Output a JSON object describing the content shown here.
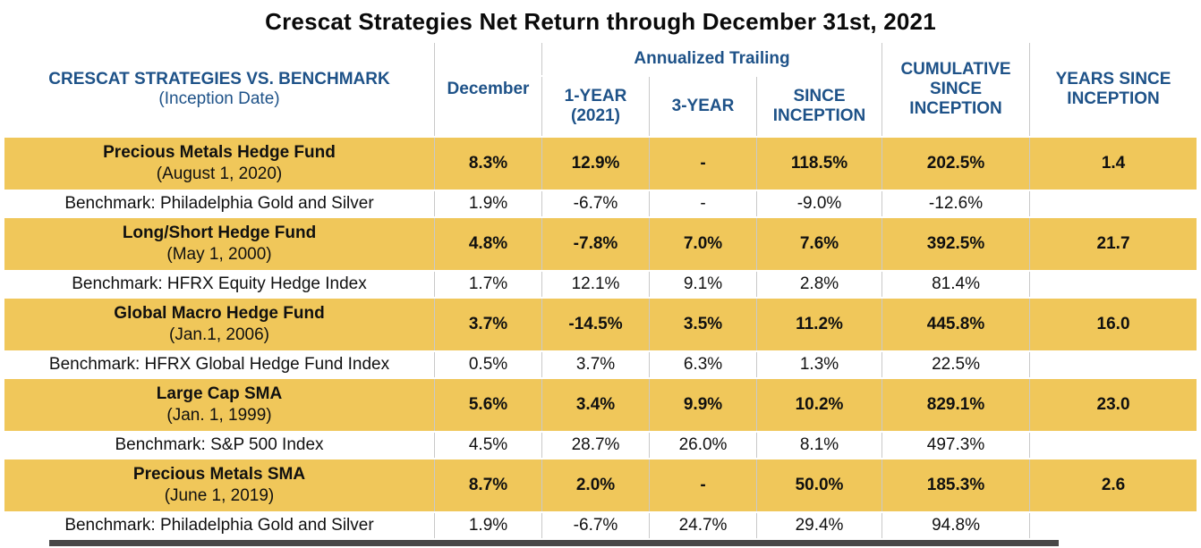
{
  "title": "Crescat Strategies Net Return through December 31st, 2021",
  "colors": {
    "gold": "#F0C75A",
    "header-blue": "#1E5288",
    "border-gray": "#c9c9c9",
    "bar-gray": "#484848",
    "text-black": "#101010"
  },
  "table": {
    "header": {
      "strategy_line1": "CRESCAT STRATEGIES VS. BENCHMARK",
      "strategy_line2": "(Inception Date)",
      "december": "December",
      "annualized_group": "Annualized Trailing",
      "one_year_lines": [
        "1-YEAR",
        "(2021)"
      ],
      "three_year": "3-YEAR",
      "since_lines": [
        "SINCE",
        "INCEPTION"
      ],
      "cumulative_lines": [
        "CUMULATIVE",
        "SINCE",
        "INCEPTION"
      ],
      "years_lines": [
        "YEARS SINCE",
        "INCEPTION"
      ]
    },
    "rows": [
      {
        "type": "fund",
        "name": "Precious Metals Hedge Fund",
        "inception": "(August 1, 2020)",
        "december": "8.3%",
        "one_year": "12.9%",
        "three_year": "-",
        "since_inception": "118.5%",
        "cumulative": "202.5%",
        "years": "1.4"
      },
      {
        "type": "bench",
        "name": "Benchmark: Philadelphia Gold and Silver",
        "december": "1.9%",
        "one_year": "-6.7%",
        "three_year": "-",
        "since_inception": "-9.0%",
        "cumulative": "-12.6%",
        "years": ""
      },
      {
        "type": "fund",
        "name": "Long/Short Hedge Fund",
        "inception": "(May 1, 2000)",
        "december": "4.8%",
        "one_year": "-7.8%",
        "three_year": "7.0%",
        "since_inception": "7.6%",
        "cumulative": "392.5%",
        "years": "21.7"
      },
      {
        "type": "bench",
        "name": "Benchmark: HFRX Equity Hedge Index",
        "december": "1.7%",
        "one_year": "12.1%",
        "three_year": "9.1%",
        "since_inception": "2.8%",
        "cumulative": "81.4%",
        "years": ""
      },
      {
        "type": "fund",
        "name": "Global Macro Hedge Fund",
        "inception": "(Jan.1, 2006)",
        "december": "3.7%",
        "one_year": "-14.5%",
        "three_year": "3.5%",
        "since_inception": "11.2%",
        "cumulative": "445.8%",
        "years": "16.0"
      },
      {
        "type": "bench",
        "name": "Benchmark: HFRX Global Hedge Fund Index",
        "december": "0.5%",
        "one_year": "3.7%",
        "three_year": "6.3%",
        "since_inception": "1.3%",
        "cumulative": "22.5%",
        "years": ""
      },
      {
        "type": "fund",
        "name": "Large Cap SMA",
        "inception": "(Jan. 1, 1999)",
        "december": "5.6%",
        "one_year": "3.4%",
        "three_year": "9.9%",
        "since_inception": "10.2%",
        "cumulative": "829.1%",
        "years": "23.0"
      },
      {
        "type": "bench",
        "name": "Benchmark: S&P 500 Index",
        "december": "4.5%",
        "one_year": "28.7%",
        "three_year": "26.0%",
        "since_inception": "8.1%",
        "cumulative": "497.3%",
        "years": ""
      },
      {
        "type": "fund",
        "name": "Precious Metals SMA",
        "inception": "(June 1, 2019)",
        "december": "8.7%",
        "one_year": "2.0%",
        "three_year": "-",
        "since_inception": "50.0%",
        "cumulative": "185.3%",
        "years": "2.6"
      },
      {
        "type": "bench",
        "name": "Benchmark: Philadelphia Gold and Silver",
        "december": "1.9%",
        "one_year": "-6.7%",
        "three_year": "24.7%",
        "since_inception": "29.4%",
        "cumulative": "94.8%",
        "years": ""
      }
    ]
  },
  "chart_data": {
    "type": "table",
    "title": "Crescat Strategies Net Return through December 31st, 2021",
    "columns": [
      "CRESCAT STRATEGIES VS. BENCHMARK (Inception Date)",
      "December",
      "1-YEAR (2021)",
      "3-YEAR",
      "SINCE INCEPTION",
      "CUMULATIVE SINCE INCEPTION",
      "YEARS SINCE INCEPTION"
    ],
    "column_groups": [
      {
        "label": "Annualized Trailing",
        "columns": [
          "1-YEAR (2021)",
          "3-YEAR",
          "SINCE INCEPTION"
        ]
      }
    ],
    "rows": [
      [
        "Precious Metals Hedge Fund (August 1, 2020)",
        "8.3%",
        "12.9%",
        "-",
        "118.5%",
        "202.5%",
        "1.4"
      ],
      [
        "Benchmark: Philadelphia Gold and Silver",
        "1.9%",
        "-6.7%",
        "-",
        "-9.0%",
        "-12.6%",
        ""
      ],
      [
        "Long/Short Hedge Fund (May 1, 2000)",
        "4.8%",
        "-7.8%",
        "7.0%",
        "7.6%",
        "392.5%",
        "21.7"
      ],
      [
        "Benchmark: HFRX Equity Hedge Index",
        "1.7%",
        "12.1%",
        "9.1%",
        "2.8%",
        "81.4%",
        ""
      ],
      [
        "Global Macro Hedge Fund (Jan.1, 2006)",
        "3.7%",
        "-14.5%",
        "3.5%",
        "11.2%",
        "445.8%",
        "16.0"
      ],
      [
        "Benchmark: HFRX Global Hedge Fund Index",
        "0.5%",
        "3.7%",
        "6.3%",
        "1.3%",
        "22.5%",
        ""
      ],
      [
        "Large Cap SMA (Jan. 1, 1999)",
        "5.6%",
        "3.4%",
        "9.9%",
        "10.2%",
        "829.1%",
        "23.0"
      ],
      [
        "Benchmark: S&P 500 Index",
        "4.5%",
        "28.7%",
        "26.0%",
        "8.1%",
        "497.3%",
        ""
      ],
      [
        "Precious Metals SMA (June 1, 2019)",
        "8.7%",
        "2.0%",
        "-",
        "50.0%",
        "185.3%",
        "2.6"
      ],
      [
        "Benchmark: Philadelphia Gold and Silver",
        "1.9%",
        "-6.7%",
        "24.7%",
        "29.4%",
        "94.8%",
        ""
      ]
    ]
  }
}
